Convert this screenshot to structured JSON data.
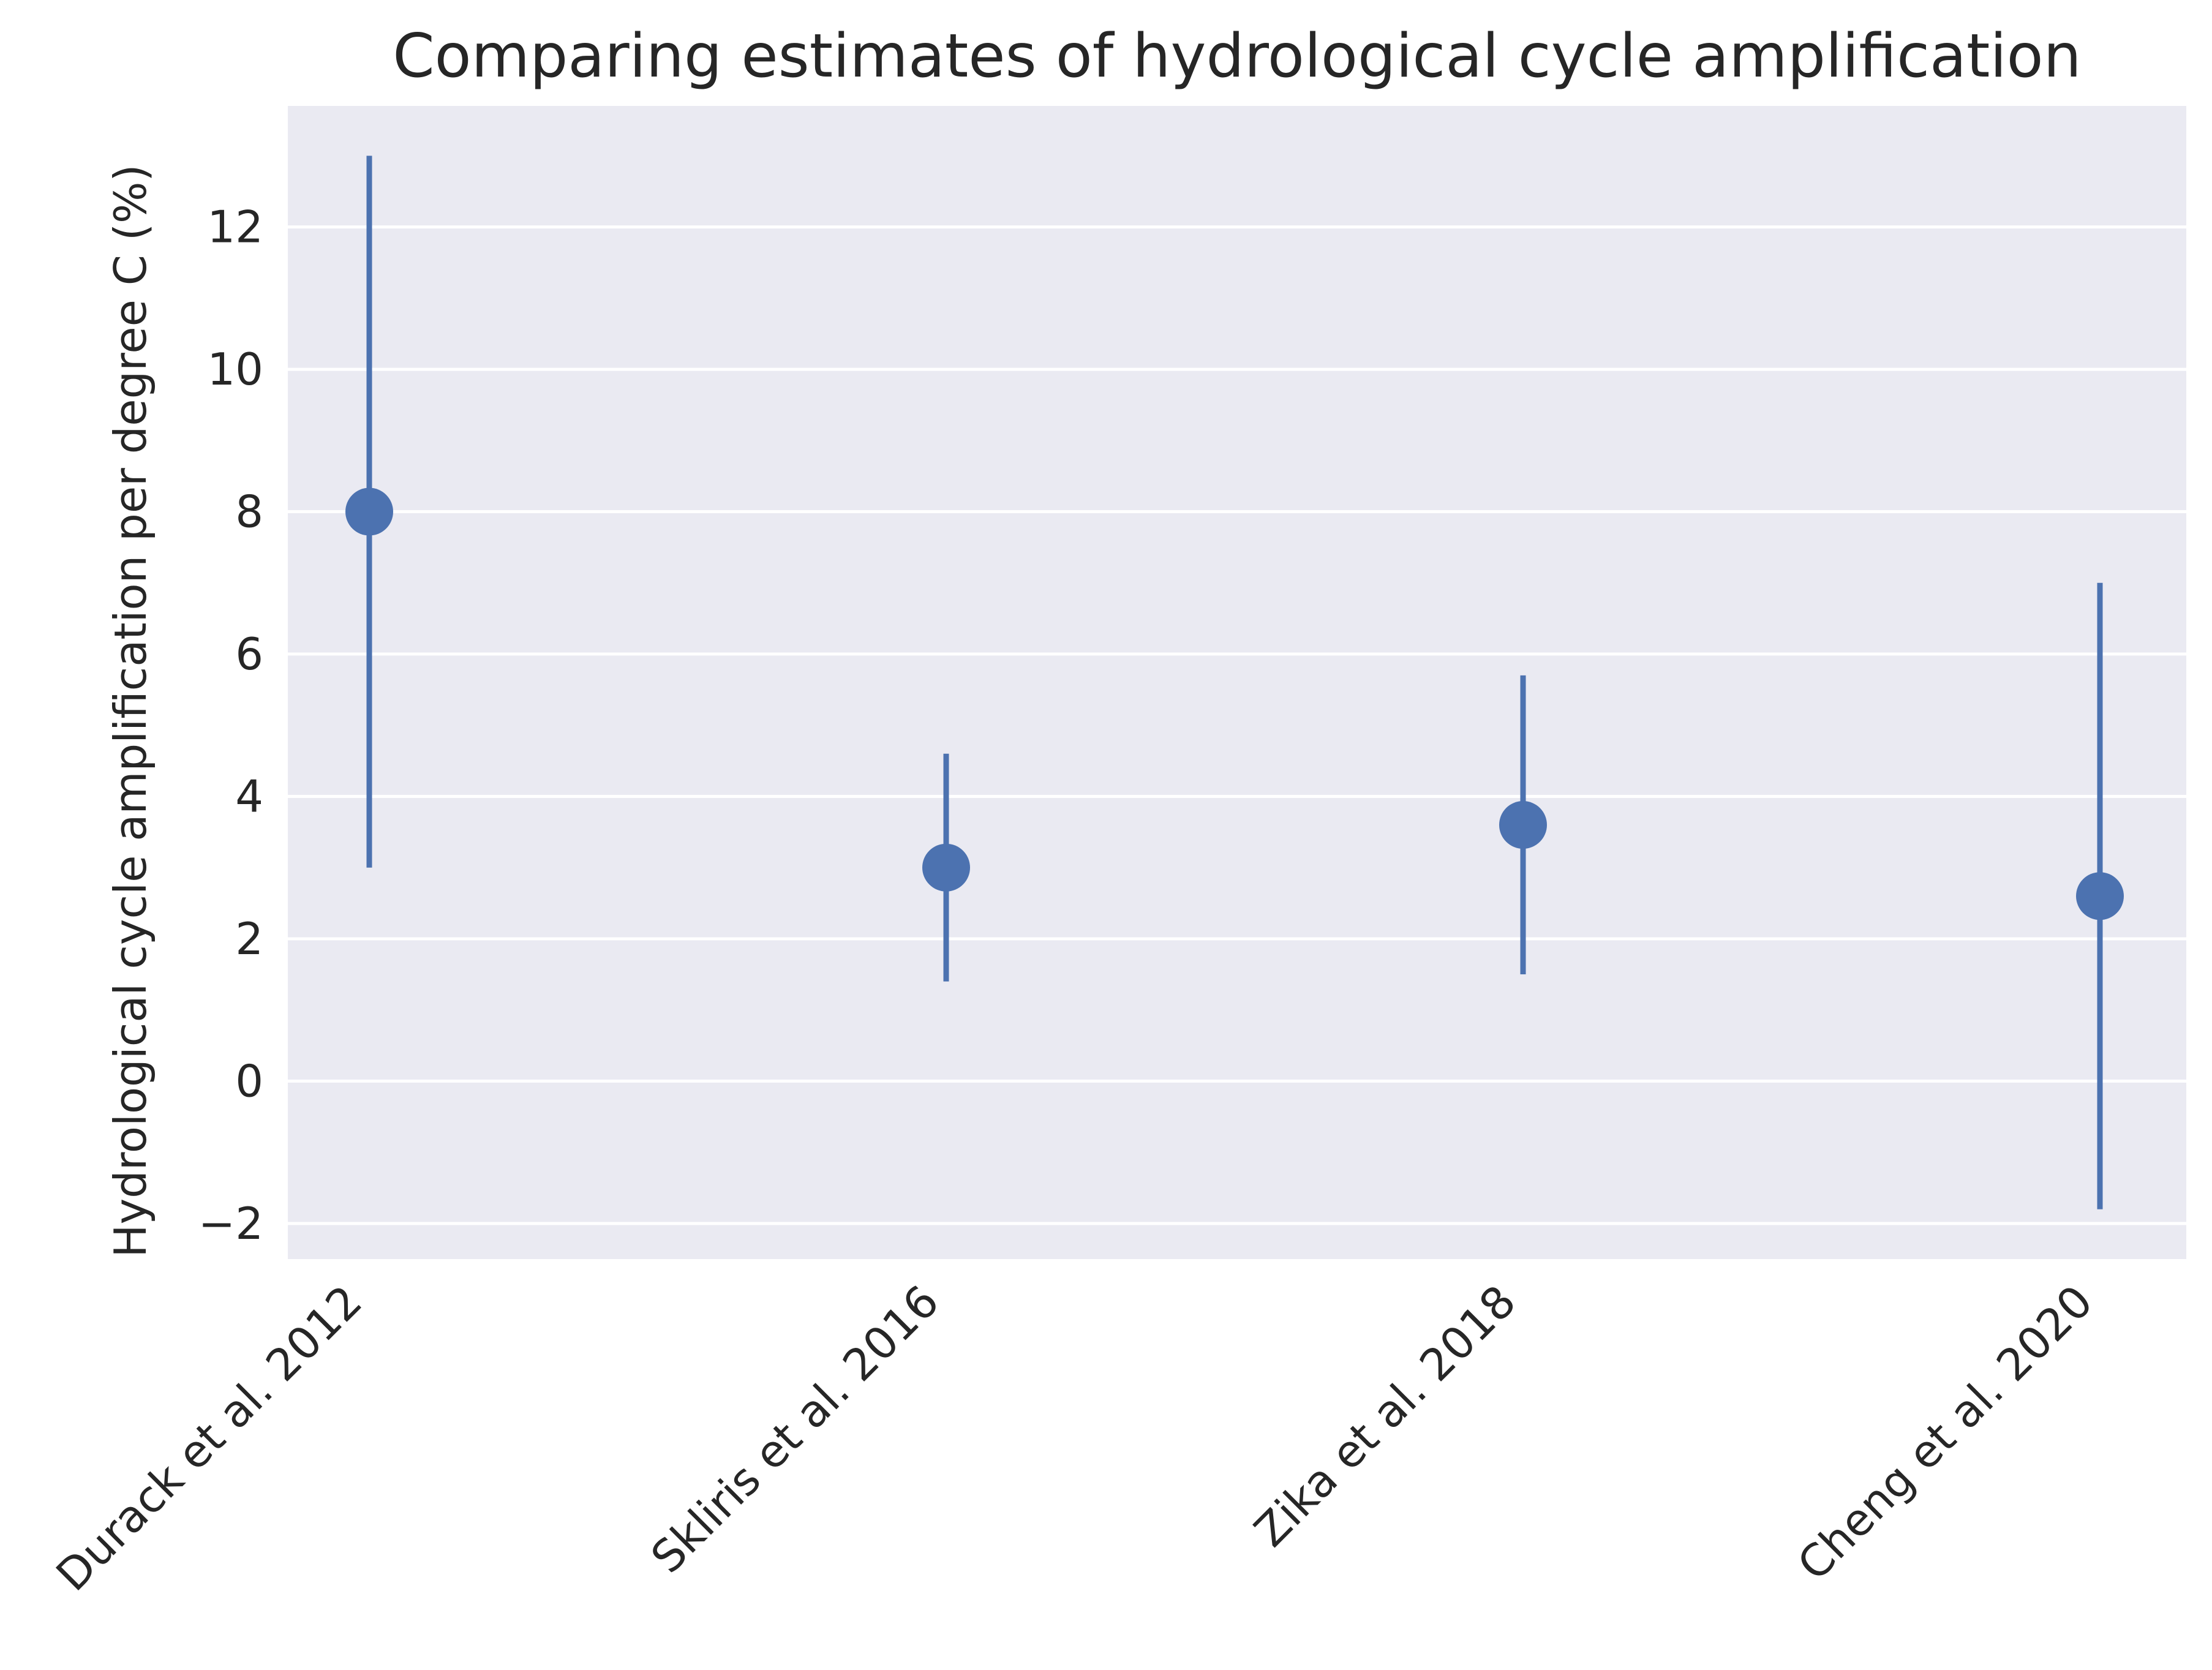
{
  "chart_data": {
    "type": "scatter",
    "title": "Comparing estimates of hydrological cycle amplification",
    "xlabel": "",
    "ylabel": "Hydrological cycle amplification per degree C (%)",
    "categories": [
      "Durack et al. 2012",
      "Skliris et al. 2016",
      "Zika et al. 2018",
      "Cheng et al. 2020"
    ],
    "series": [
      {
        "values": [
          8.0,
          3.0,
          3.6,
          2.6
        ],
        "error_low": [
          3.0,
          1.4,
          1.5,
          -1.8
        ],
        "error_high": [
          13.0,
          4.6,
          5.7,
          7.0
        ]
      }
    ],
    "ylim": [
      -2.5,
      13.7
    ],
    "yticks": [
      -2,
      0,
      2,
      4,
      6,
      8,
      10,
      12
    ],
    "ytick_labels": [
      "−2",
      "0",
      "2",
      "4",
      "6",
      "8",
      "10",
      "12"
    ],
    "grid": true,
    "colors": {
      "marker": "#4C72B0",
      "plot_background": "#EAEAF2",
      "grid": "#FFFFFF",
      "text": "#262626"
    }
  }
}
